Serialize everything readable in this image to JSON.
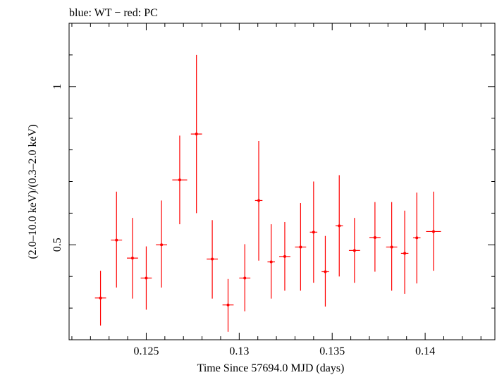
{
  "chart_data": {
    "type": "scatter",
    "title": "blue: WT − red: PC",
    "xlabel": "Time Since 57694.0 MJD (days)",
    "ylabel": "(2.0–10.0 keV)/(0.3–2.0 keV)",
    "xlim": [
      0.12085,
      0.14375
    ],
    "ylim": [
      0.2,
      1.2
    ],
    "x_ticks": [
      {
        "value": 0.125,
        "label": "0.125"
      },
      {
        "value": 0.13,
        "label": "0.13"
      },
      {
        "value": 0.135,
        "label": "0.135"
      },
      {
        "value": 0.14,
        "label": "0.14"
      }
    ],
    "y_ticks": [
      {
        "value": 0.5,
        "label": "0.5"
      },
      {
        "value": 1.0,
        "label": "1"
      }
    ],
    "series": [
      {
        "color": "#ff0000",
        "points": [
          {
            "x": 0.12254,
            "xerr": 0.0003,
            "y": 0.332,
            "ylo": 0.245,
            "yhi": 0.418
          },
          {
            "x": 0.1234,
            "xerr": 0.0003,
            "y": 0.515,
            "ylo": 0.365,
            "yhi": 0.668
          },
          {
            "x": 0.12426,
            "xerr": 0.0003,
            "y": 0.458,
            "ylo": 0.33,
            "yhi": 0.585
          },
          {
            "x": 0.125,
            "xerr": 0.0003,
            "y": 0.395,
            "ylo": 0.295,
            "yhi": 0.495
          },
          {
            "x": 0.12582,
            "xerr": 0.0003,
            "y": 0.5,
            "ylo": 0.365,
            "yhi": 0.64
          },
          {
            "x": 0.1268,
            "xerr": 0.0004,
            "y": 0.705,
            "ylo": 0.565,
            "yhi": 0.845
          },
          {
            "x": 0.1277,
            "xerr": 0.0003,
            "y": 0.85,
            "ylo": 0.6,
            "yhi": 1.1
          },
          {
            "x": 0.12855,
            "xerr": 0.0003,
            "y": 0.455,
            "ylo": 0.33,
            "yhi": 0.578
          },
          {
            "x": 0.1294,
            "xerr": 0.0003,
            "y": 0.31,
            "ylo": 0.225,
            "yhi": 0.392
          },
          {
            "x": 0.1303,
            "xerr": 0.0003,
            "y": 0.395,
            "ylo": 0.29,
            "yhi": 0.502
          },
          {
            "x": 0.13105,
            "xerr": 0.0002,
            "y": 0.64,
            "ylo": 0.45,
            "yhi": 0.828
          },
          {
            "x": 0.13172,
            "xerr": 0.0002,
            "y": 0.446,
            "ylo": 0.33,
            "yhi": 0.565
          },
          {
            "x": 0.13245,
            "xerr": 0.0003,
            "y": 0.463,
            "ylo": 0.355,
            "yhi": 0.572
          },
          {
            "x": 0.1333,
            "xerr": 0.0003,
            "y": 0.493,
            "ylo": 0.355,
            "yhi": 0.632
          },
          {
            "x": 0.134,
            "xerr": 0.0002,
            "y": 0.54,
            "ylo": 0.38,
            "yhi": 0.7
          },
          {
            "x": 0.13463,
            "xerr": 0.0002,
            "y": 0.415,
            "ylo": 0.305,
            "yhi": 0.528
          },
          {
            "x": 0.13538,
            "xerr": 0.0002,
            "y": 0.56,
            "ylo": 0.4,
            "yhi": 0.72
          },
          {
            "x": 0.1362,
            "xerr": 0.0003,
            "y": 0.482,
            "ylo": 0.38,
            "yhi": 0.585
          },
          {
            "x": 0.1373,
            "xerr": 0.0003,
            "y": 0.523,
            "ylo": 0.415,
            "yhi": 0.635
          },
          {
            "x": 0.1382,
            "xerr": 0.0003,
            "y": 0.493,
            "ylo": 0.355,
            "yhi": 0.635
          },
          {
            "x": 0.1389,
            "xerr": 0.0002,
            "y": 0.473,
            "ylo": 0.345,
            "yhi": 0.608
          },
          {
            "x": 0.13955,
            "xerr": 0.0002,
            "y": 0.522,
            "ylo": 0.378,
            "yhi": 0.665
          },
          {
            "x": 0.14045,
            "xerr": 0.0004,
            "y": 0.542,
            "ylo": 0.418,
            "yhi": 0.668
          }
        ]
      }
    ]
  }
}
